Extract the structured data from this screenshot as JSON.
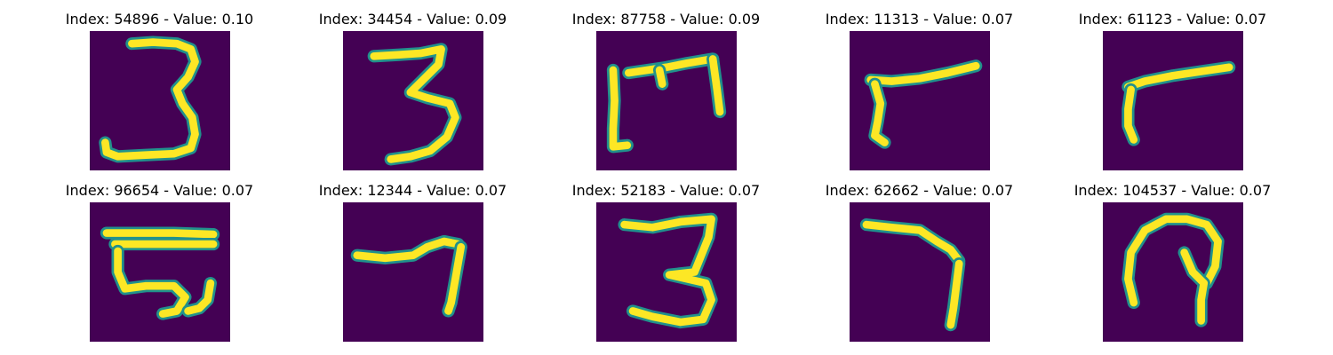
{
  "colors": {
    "background": "#440154",
    "stroke_core": "#fde725",
    "stroke_edge": "#21918c"
  },
  "panels": [
    {
      "title": "Index: 54896 - Value: 0.10",
      "digit_shape": "three",
      "strokes": [
        [
          [
            0.3,
            0.09
          ],
          [
            0.45,
            0.08
          ],
          [
            0.62,
            0.09
          ],
          [
            0.72,
            0.13
          ],
          [
            0.75,
            0.22
          ],
          [
            0.7,
            0.33
          ],
          [
            0.62,
            0.42
          ],
          [
            0.66,
            0.52
          ],
          [
            0.73,
            0.62
          ],
          [
            0.75,
            0.74
          ],
          [
            0.72,
            0.84
          ],
          [
            0.6,
            0.88
          ],
          [
            0.4,
            0.89
          ],
          [
            0.2,
            0.9
          ],
          [
            0.12,
            0.87
          ],
          [
            0.11,
            0.8
          ]
        ]
      ]
    },
    {
      "title": "Index: 34454 - Value: 0.09",
      "digit_shape": "three",
      "strokes": [
        [
          [
            0.22,
            0.18
          ],
          [
            0.4,
            0.17
          ],
          [
            0.55,
            0.16
          ],
          [
            0.7,
            0.13
          ],
          [
            0.68,
            0.24
          ],
          [
            0.56,
            0.36
          ],
          [
            0.48,
            0.44
          ],
          [
            0.6,
            0.48
          ],
          [
            0.76,
            0.52
          ],
          [
            0.8,
            0.62
          ],
          [
            0.74,
            0.76
          ],
          [
            0.62,
            0.86
          ],
          [
            0.48,
            0.9
          ],
          [
            0.34,
            0.92
          ]
        ]
      ]
    },
    {
      "title": "Index: 87758 - Value: 0.09",
      "digit_shape": "bracket-M",
      "strokes": [
        [
          [
            0.12,
            0.28
          ],
          [
            0.13,
            0.5
          ],
          [
            0.12,
            0.7
          ],
          [
            0.12,
            0.83
          ],
          [
            0.22,
            0.82
          ]
        ],
        [
          [
            0.23,
            0.3
          ],
          [
            0.5,
            0.26
          ],
          [
            0.65,
            0.23
          ],
          [
            0.83,
            0.2
          ]
        ],
        [
          [
            0.45,
            0.28
          ],
          [
            0.47,
            0.38
          ]
        ],
        [
          [
            0.83,
            0.2
          ],
          [
            0.86,
            0.42
          ],
          [
            0.88,
            0.58
          ]
        ]
      ]
    },
    {
      "title": "Index: 11313 - Value: 0.07",
      "digit_shape": "seven-like",
      "strokes": [
        [
          [
            0.9,
            0.25
          ],
          [
            0.7,
            0.3
          ],
          [
            0.5,
            0.34
          ],
          [
            0.3,
            0.36
          ],
          [
            0.15,
            0.35
          ]
        ],
        [
          [
            0.18,
            0.38
          ],
          [
            0.22,
            0.52
          ],
          [
            0.2,
            0.65
          ],
          [
            0.18,
            0.75
          ],
          [
            0.25,
            0.8
          ]
        ]
      ]
    },
    {
      "title": "Index: 61123 - Value: 0.07",
      "digit_shape": "seven-like",
      "strokes": [
        [
          [
            0.9,
            0.26
          ],
          [
            0.7,
            0.29
          ],
          [
            0.5,
            0.32
          ],
          [
            0.3,
            0.36
          ],
          [
            0.18,
            0.4
          ]
        ],
        [
          [
            0.2,
            0.42
          ],
          [
            0.18,
            0.56
          ],
          [
            0.18,
            0.68
          ],
          [
            0.22,
            0.78
          ]
        ]
      ]
    },
    {
      "title": "Index: 96654 - Value: 0.07",
      "digit_shape": "E-like",
      "strokes": [
        [
          [
            0.12,
            0.22
          ],
          [
            0.35,
            0.22
          ],
          [
            0.6,
            0.22
          ],
          [
            0.88,
            0.23
          ]
        ],
        [
          [
            0.18,
            0.3
          ],
          [
            0.42,
            0.3
          ],
          [
            0.7,
            0.3
          ],
          [
            0.88,
            0.3
          ]
        ],
        [
          [
            0.2,
            0.35
          ],
          [
            0.2,
            0.5
          ],
          [
            0.25,
            0.62
          ],
          [
            0.4,
            0.6
          ],
          [
            0.6,
            0.6
          ],
          [
            0.68,
            0.68
          ],
          [
            0.62,
            0.78
          ],
          [
            0.52,
            0.8
          ]
        ],
        [
          [
            0.86,
            0.58
          ],
          [
            0.84,
            0.7
          ],
          [
            0.78,
            0.76
          ],
          [
            0.7,
            0.78
          ]
        ]
      ]
    },
    {
      "title": "Index: 12344 - Value: 0.07",
      "digit_shape": "seven",
      "strokes": [
        [
          [
            0.1,
            0.38
          ],
          [
            0.3,
            0.4
          ],
          [
            0.5,
            0.38
          ],
          [
            0.6,
            0.32
          ],
          [
            0.72,
            0.28
          ],
          [
            0.82,
            0.3
          ]
        ],
        [
          [
            0.84,
            0.32
          ],
          [
            0.8,
            0.55
          ],
          [
            0.77,
            0.72
          ],
          [
            0.75,
            0.78
          ]
        ]
      ]
    },
    {
      "title": "Index: 52183 - Value: 0.07",
      "digit_shape": "three",
      "strokes": [
        [
          [
            0.2,
            0.16
          ],
          [
            0.4,
            0.18
          ],
          [
            0.6,
            0.14
          ],
          [
            0.82,
            0.12
          ],
          [
            0.8,
            0.25
          ],
          [
            0.74,
            0.4
          ],
          [
            0.7,
            0.5
          ],
          [
            0.52,
            0.52
          ],
          [
            0.78,
            0.58
          ],
          [
            0.82,
            0.7
          ],
          [
            0.76,
            0.84
          ],
          [
            0.6,
            0.86
          ],
          [
            0.4,
            0.82
          ],
          [
            0.26,
            0.78
          ]
        ]
      ]
    },
    {
      "title": "Index: 62662 - Value: 0.07",
      "digit_shape": "seven",
      "strokes": [
        [
          [
            0.12,
            0.16
          ],
          [
            0.3,
            0.18
          ],
          [
            0.5,
            0.2
          ],
          [
            0.62,
            0.28
          ],
          [
            0.72,
            0.34
          ],
          [
            0.78,
            0.42
          ]
        ],
        [
          [
            0.78,
            0.44
          ],
          [
            0.76,
            0.6
          ],
          [
            0.74,
            0.76
          ],
          [
            0.72,
            0.88
          ]
        ]
      ]
    },
    {
      "title": "Index: 104537 - Value: 0.07",
      "digit_shape": "loop",
      "strokes": [
        [
          [
            0.22,
            0.72
          ],
          [
            0.18,
            0.55
          ],
          [
            0.2,
            0.36
          ],
          [
            0.3,
            0.2
          ],
          [
            0.45,
            0.12
          ],
          [
            0.6,
            0.12
          ],
          [
            0.74,
            0.16
          ],
          [
            0.82,
            0.28
          ],
          [
            0.8,
            0.46
          ],
          [
            0.74,
            0.58
          ]
        ],
        [
          [
            0.58,
            0.36
          ],
          [
            0.64,
            0.5
          ],
          [
            0.72,
            0.58
          ],
          [
            0.7,
            0.7
          ],
          [
            0.7,
            0.85
          ]
        ]
      ]
    }
  ]
}
